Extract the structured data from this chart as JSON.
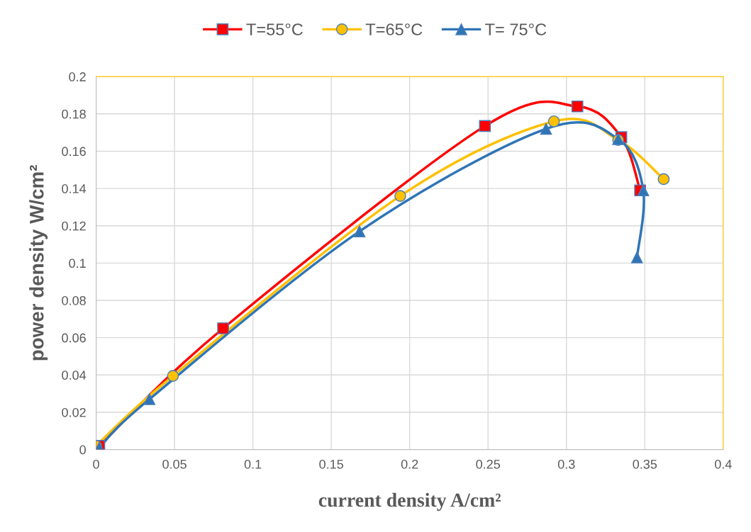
{
  "chart_data": {
    "type": "line",
    "xlabel": "current density A/cm²",
    "ylabel": "power density W/cm²",
    "xlim": [
      0,
      0.4
    ],
    "xticks": [
      0,
      0.05,
      0.1,
      0.15,
      0.2,
      0.25,
      0.3,
      0.35,
      0.4
    ],
    "ylim": [
      0,
      0.2
    ],
    "yticks": [
      0,
      0.02,
      0.04,
      0.06,
      0.08,
      0.1,
      0.12,
      0.14,
      0.16,
      0.18,
      0.2
    ],
    "grid": true,
    "legend": "top",
    "line_style": "solid",
    "series": [
      {
        "name": "T=55°C",
        "color": "#ff0000",
        "marker": "square",
        "x": [
          0.002,
          0.081,
          0.248,
          0.307,
          0.335,
          0.347
        ],
        "values": [
          0.002,
          0.065,
          0.1735,
          0.184,
          0.1675,
          0.139
        ]
      },
      {
        "name": "T=65°C",
        "color": "#ffc000",
        "marker": "circle",
        "x": [
          0.0,
          0.049,
          0.194,
          0.292,
          0.333,
          0.362
        ],
        "values": [
          0.002,
          0.0395,
          0.136,
          0.176,
          0.166,
          0.145
        ]
      },
      {
        "name": "T= 75°C",
        "color": "#2e75b6",
        "marker": "triangle",
        "x": [
          0.002,
          0.034,
          0.168,
          0.287,
          0.333,
          0.349,
          0.345
        ],
        "values": [
          0.001,
          0.027,
          0.117,
          0.172,
          0.1665,
          0.139,
          0.103
        ]
      }
    ]
  }
}
